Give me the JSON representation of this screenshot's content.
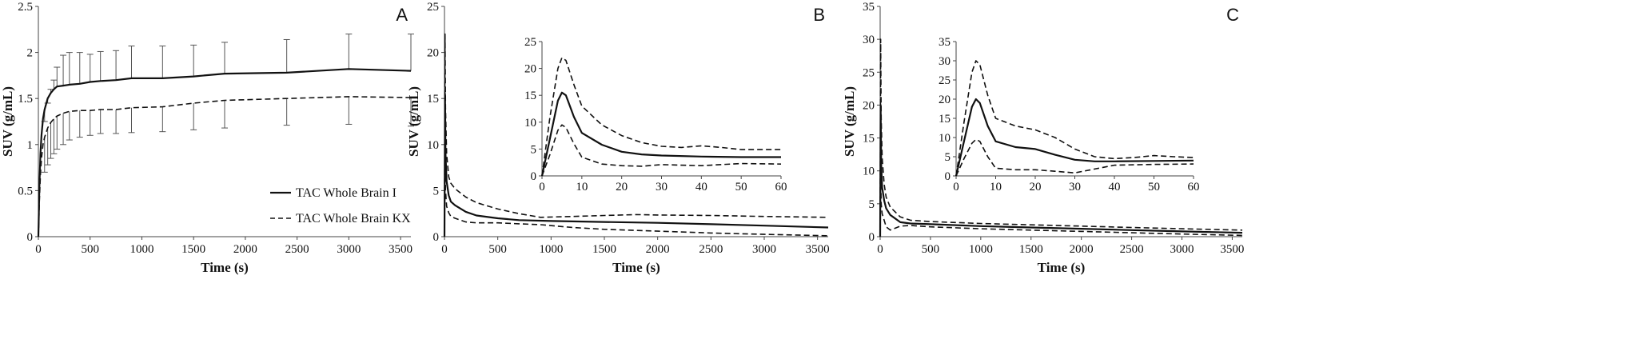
{
  "chart_data": [
    {
      "type": "line",
      "panel_label": "A",
      "xlabel": "Time (s)",
      "ylabel": "SUV (g/mL)",
      "xlim": [
        0,
        3600
      ],
      "ylim": [
        0,
        2.5
      ],
      "xticks": [
        0,
        500,
        1000,
        1500,
        2000,
        2500,
        3000,
        3500
      ],
      "yticks": [
        0,
        0.5,
        1,
        1.5,
        2,
        2.5
      ],
      "grid": false,
      "legend_position": "bottom-right",
      "series": [
        {
          "name": "TAC Whole Brain I",
          "style": "solid",
          "x": [
            0,
            10,
            20,
            30,
            45,
            60,
            90,
            120,
            150,
            180,
            240,
            300,
            400,
            500,
            600,
            750,
            900,
            1200,
            1500,
            1800,
            2400,
            3000,
            3600
          ],
          "y": [
            0,
            0.55,
            0.9,
            1.1,
            1.28,
            1.38,
            1.5,
            1.56,
            1.6,
            1.63,
            1.64,
            1.65,
            1.66,
            1.68,
            1.69,
            1.7,
            1.72,
            1.72,
            1.74,
            1.77,
            1.78,
            1.82,
            1.8
          ],
          "error_x": [
            60,
            90,
            120,
            150,
            180,
            240,
            300,
            400,
            500,
            600,
            750,
            900,
            1200,
            1500,
            1800,
            2400,
            3000,
            3600
          ],
          "error_upper": [
            1.25,
            1.45,
            1.6,
            1.7,
            1.84,
            1.97,
            2.0,
            2.0,
            1.98,
            2.01,
            2.02,
            2.07,
            2.07,
            2.08,
            2.11,
            2.14,
            2.2,
            2.2
          ]
        },
        {
          "name": "TAC Whole Brain KX",
          "style": "dashed",
          "x": [
            0,
            10,
            20,
            30,
            45,
            60,
            90,
            120,
            150,
            180,
            240,
            300,
            400,
            500,
            600,
            750,
            900,
            1200,
            1500,
            1800,
            2400,
            3000,
            3600
          ],
          "y": [
            0,
            0.4,
            0.68,
            0.85,
            1.0,
            1.08,
            1.18,
            1.24,
            1.28,
            1.31,
            1.34,
            1.36,
            1.37,
            1.37,
            1.38,
            1.38,
            1.4,
            1.41,
            1.45,
            1.48,
            1.5,
            1.52,
            1.51
          ],
          "error_x": [
            60,
            90,
            120,
            150,
            180,
            240,
            300,
            400,
            500,
            600,
            750,
            900,
            1200,
            1500,
            1800,
            2400,
            3000,
            3600
          ],
          "error_lower": [
            0.7,
            0.78,
            0.85,
            0.9,
            0.95,
            1.0,
            1.05,
            1.08,
            1.1,
            1.12,
            1.12,
            1.13,
            1.14,
            1.16,
            1.18,
            1.21,
            1.22,
            1.2
          ]
        }
      ]
    },
    {
      "type": "line",
      "panel_label": "B",
      "xlabel": "Time (s)",
      "ylabel": "SUV (g/mL)",
      "xlim": [
        0,
        3600
      ],
      "ylim": [
        0,
        25
      ],
      "xticks": [
        0,
        500,
        1000,
        1500,
        2000,
        2500,
        3000,
        3500
      ],
      "yticks": [
        0,
        5,
        10,
        15,
        20,
        25
      ],
      "grid": false,
      "series": [
        {
          "name": "",
          "style": "solid",
          "x": [
            0,
            5,
            10,
            20,
            40,
            60,
            100,
            200,
            300,
            500,
            700,
            1000,
            1500,
            2000,
            2500,
            3000,
            3600
          ],
          "y": [
            0,
            15.5,
            9,
            6,
            4.5,
            3.8,
            3.4,
            2.7,
            2.3,
            2.0,
            1.8,
            1.7,
            1.6,
            1.5,
            1.35,
            1.2,
            1.0
          ]
        },
        {
          "name": "",
          "style": "dashed",
          "x": [
            0,
            5,
            10,
            20,
            40,
            60,
            100,
            200,
            300,
            500,
            700,
            900,
            1200,
            1500,
            1800,
            2000,
            2500,
            3000,
            3600
          ],
          "y": [
            0,
            22,
            14,
            9,
            6.5,
            5.8,
            5.2,
            4.3,
            3.7,
            3.0,
            2.5,
            2.1,
            2.2,
            2.3,
            2.4,
            2.35,
            2.3,
            2.2,
            2.1
          ]
        },
        {
          "name": "",
          "style": "dashed",
          "x": [
            0,
            5,
            10,
            20,
            40,
            60,
            100,
            200,
            300,
            500,
            700,
            900,
            1200,
            1500,
            2000,
            2500,
            3000,
            3600
          ],
          "y": [
            0,
            9.5,
            5,
            3.3,
            2.6,
            2.2,
            2.0,
            1.6,
            1.5,
            1.5,
            1.4,
            1.3,
            1.0,
            0.8,
            0.6,
            0.4,
            0.25,
            0.1
          ]
        }
      ],
      "inset": {
        "xlim": [
          0,
          60
        ],
        "ylim": [
          0,
          25
        ],
        "xticks": [
          0,
          10,
          20,
          30,
          40,
          50,
          60
        ],
        "yticks": [
          0,
          5,
          10,
          15,
          20,
          25
        ],
        "series": [
          {
            "name": "",
            "style": "solid",
            "x": [
              0,
              2,
              4,
              5,
              6,
              8,
              10,
              15,
              20,
              25,
              30,
              40,
              50,
              60
            ],
            "y": [
              0,
              7,
              14,
              15.5,
              15,
              11,
              8,
              5.8,
              4.5,
              4.0,
              3.8,
              3.6,
              3.5,
              3.5
            ]
          },
          {
            "name": "",
            "style": "dashed",
            "x": [
              0,
              2,
              4,
              5,
              6,
              8,
              10,
              15,
              20,
              25,
              30,
              35,
              40,
              45,
              50,
              60
            ],
            "y": [
              0,
              11,
              20,
              22,
              21.5,
              17,
              13,
              9.5,
              7.5,
              6.2,
              5.5,
              5.3,
              5.6,
              5.3,
              4.9,
              4.9
            ]
          },
          {
            "name": "",
            "style": "dashed",
            "x": [
              0,
              2,
              4,
              5,
              6,
              8,
              10,
              15,
              20,
              25,
              30,
              40,
              50,
              60
            ],
            "y": [
              0,
              4,
              8.5,
              9.5,
              9,
              6,
              3.5,
              2.2,
              1.9,
              1.8,
              2.1,
              1.9,
              2.3,
              2.2
            ]
          }
        ]
      }
    },
    {
      "type": "line",
      "panel_label": "C",
      "xlabel": "Time (s)",
      "ylabel": "SUV (g/mL)",
      "xlim": [
        0,
        3600
      ],
      "ylim": [
        0,
        35
      ],
      "xticks": [
        0,
        500,
        1000,
        1500,
        2000,
        2500,
        3000,
        3500
      ],
      "yticks": [
        0,
        5,
        10,
        15,
        20,
        25,
        30,
        35
      ],
      "grid": false,
      "series": [
        {
          "name": "",
          "style": "solid",
          "x": [
            0,
            5,
            10,
            20,
            40,
            60,
            100,
            200,
            300,
            500,
            1000,
            1500,
            2000,
            2500,
            3000,
            3600
          ],
          "y": [
            0,
            20,
            11,
            7.5,
            5.5,
            4.3,
            3.3,
            2.2,
            2.0,
            1.9,
            1.6,
            1.4,
            1.2,
            1.0,
            0.8,
            0.6
          ]
        },
        {
          "name": "",
          "style": "dashed",
          "x": [
            0,
            5,
            10,
            20,
            40,
            60,
            100,
            200,
            300,
            500,
            1000,
            1500,
            2000,
            2500,
            3000,
            3600
          ],
          "y": [
            0,
            30,
            18,
            12,
            8,
            6,
            4.5,
            3.0,
            2.5,
            2.3,
            2.0,
            1.8,
            1.6,
            1.4,
            1.2,
            1.0
          ]
        },
        {
          "name": "",
          "style": "dashed",
          "x": [
            0,
            5,
            10,
            20,
            40,
            60,
            100,
            200,
            300,
            500,
            1000,
            1500,
            2000,
            2500,
            3000,
            3600
          ],
          "y": [
            0,
            10,
            5,
            3.5,
            2.5,
            1.5,
            1.0,
            1.6,
            1.7,
            1.5,
            1.2,
            1.0,
            0.8,
            0.6,
            0.4,
            0.2
          ]
        }
      ],
      "inset": {
        "xlim": [
          0,
          60
        ],
        "ylim": [
          0,
          35
        ],
        "xticks": [
          0,
          10,
          20,
          30,
          40,
          50,
          60
        ],
        "yticks": [
          0,
          5,
          10,
          15,
          20,
          25,
          30,
          35
        ],
        "series": [
          {
            "name": "",
            "style": "solid",
            "x": [
              0,
              2,
              4,
              5,
              6,
              8,
              10,
              15,
              20,
              25,
              30,
              35,
              40,
              50,
              60
            ],
            "y": [
              0,
              9,
              18,
              20,
              19,
              13,
              9,
              7.5,
              7,
              5.5,
              4.2,
              3.8,
              3.8,
              3.9,
              4.0
            ]
          },
          {
            "name": "",
            "style": "dashed",
            "x": [
              0,
              2,
              4,
              5,
              6,
              8,
              10,
              15,
              20,
              25,
              30,
              35,
              40,
              45,
              50,
              55,
              60
            ],
            "y": [
              0,
              14,
              27,
              30,
              29,
              21,
              15,
              13,
              12,
              10,
              7,
              5,
              4.5,
              4.8,
              5.3,
              5.0,
              4.8
            ]
          },
          {
            "name": "",
            "style": "dashed",
            "x": [
              0,
              2,
              4,
              5,
              6,
              8,
              10,
              15,
              20,
              25,
              30,
              35,
              40,
              50,
              60
            ],
            "y": [
              0,
              4.5,
              8.5,
              9.5,
              9,
              5,
              2,
              1.6,
              1.6,
              1.2,
              0.8,
              1.8,
              2.8,
              3.0,
              3.1
            ]
          }
        ]
      }
    }
  ]
}
